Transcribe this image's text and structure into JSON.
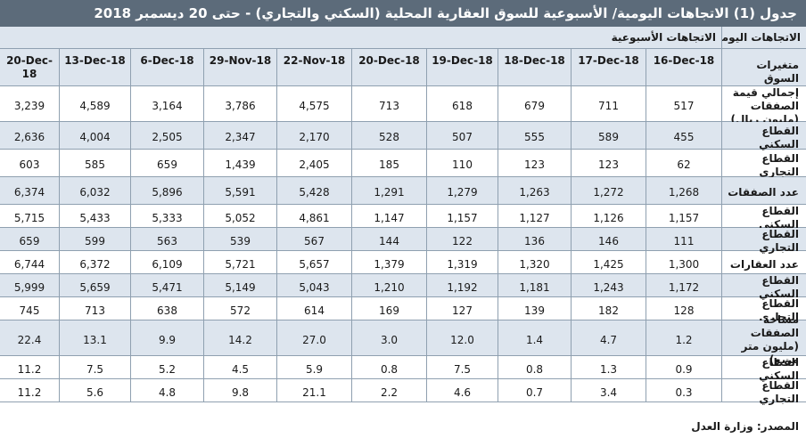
{
  "title": "جدول (1) الاتجاهات اليومية/ الأسبوعية للسوق العقارية المحلية (السكني والتجاري) - حتى 20 ديسمبر 2018",
  "section_daily": "الاتجاهات اليومية",
  "section_weekly": "الاتجاهات الأسبوعية",
  "row_header": "متغيرات السوق",
  "dates": [
    "20-Dec-18",
    "13-Dec-18",
    "6-Dec-18",
    "29-Nov-18",
    "22-Nov-18",
    "20-Dec-18",
    "19-Dec-18",
    "18-Dec-18",
    "17-Dec-18",
    "16-Dec-18"
  ],
  "rows": [
    {
      "label": "إجمالي قيمة الصفقات (مليون ريال)",
      "values": [
        "3,239",
        "4,589",
        "3,164",
        "3,786",
        "4,575",
        "713",
        "618",
        "679",
        "711",
        "517"
      ]
    },
    {
      "label": "القطاع السكني",
      "values": [
        "2,636",
        "4,004",
        "2,505",
        "2,347",
        "2,170",
        "528",
        "507",
        "555",
        "589",
        "455"
      ]
    },
    {
      "label": "القطاع التجاري",
      "values": [
        "603",
        "585",
        "659",
        "1,439",
        "2,405",
        "185",
        "110",
        "123",
        "123",
        "62"
      ]
    },
    {
      "label": "عدد الصفقات",
      "values": [
        "6,374",
        "6,032",
        "5,896",
        "5,591",
        "5,428",
        "1,291",
        "1,279",
        "1,263",
        "1,272",
        "1,268"
      ]
    },
    {
      "label": "القطاع السكني",
      "values": [
        "5,715",
        "5,433",
        "5,333",
        "5,052",
        "4,861",
        "1,147",
        "1,157",
        "1,127",
        "1,126",
        "1,157"
      ]
    },
    {
      "label": "القطاع التجاري",
      "values": [
        "659",
        "599",
        "563",
        "539",
        "567",
        "144",
        "122",
        "136",
        "146",
        "111"
      ]
    },
    {
      "label": "عدد العقارات",
      "values": [
        "6,744",
        "6,372",
        "6,109",
        "5,721",
        "5,657",
        "1,379",
        "1,319",
        "1,320",
        "1,425",
        "1,300"
      ]
    },
    {
      "label": "القطاع السكني",
      "values": [
        "5,999",
        "5,659",
        "5,471",
        "5,149",
        "5,043",
        "1,210",
        "1,192",
        "1,181",
        "1,243",
        "1,172"
      ]
    },
    {
      "label": "القطاع التجاري",
      "values": [
        "745",
        "713",
        "638",
        "572",
        "614",
        "169",
        "127",
        "139",
        "182",
        "128"
      ]
    },
    {
      "label": "مساحة الصفقات (مليون متر مربع)",
      "values": [
        "22.4",
        "13.1",
        "9.9",
        "14.2",
        "27.0",
        "3.0",
        "12.0",
        "1.4",
        "4.7",
        "1.2"
      ]
    },
    {
      "label": "القطاع السكني",
      "values": [
        "11.2",
        "7.5",
        "5.2",
        "4.5",
        "5.9",
        "0.8",
        "7.5",
        "0.8",
        "1.3",
        "0.9"
      ]
    },
    {
      "label": "القطاع التجاري",
      "values": [
        "11.2",
        "5.6",
        "4.8",
        "9.8",
        "21.1",
        "2.2",
        "4.6",
        "0.7",
        "3.4",
        "0.3"
      ]
    }
  ],
  "shaded_rows": [
    2,
    4,
    6,
    8,
    10
  ],
  "colors": {
    "title_bg": "#5c6b7a",
    "header_bg": "#dde5ee",
    "border": "#8fa0b0"
  },
  "footer": "المصدر: وزارة العدل"
}
